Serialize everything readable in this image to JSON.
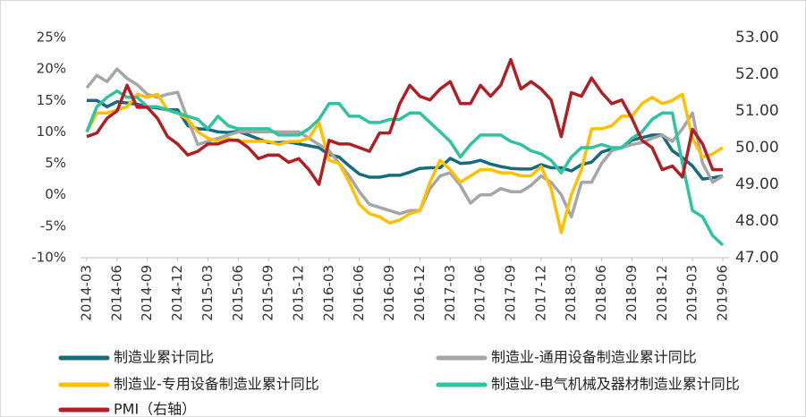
{
  "chart_data": {
    "type": "line",
    "categories": [
      "2014-03",
      null,
      null,
      "2014-06",
      null,
      null,
      "2014-09",
      null,
      null,
      "2014-12",
      null,
      null,
      "2015-03",
      null,
      null,
      "2015-06",
      null,
      null,
      "2015-09",
      null,
      null,
      "2015-12",
      null,
      null,
      "2016-03",
      null,
      null,
      "2016-06",
      null,
      null,
      "2016-09",
      null,
      null,
      "2016-12",
      null,
      null,
      "2017-03",
      null,
      null,
      "2017-06",
      null,
      null,
      "2017-09",
      null,
      null,
      "2017-12",
      null,
      null,
      "2018-03",
      null,
      null,
      "2018-06",
      null,
      null,
      "2018-09",
      null,
      null,
      "2018-12",
      null,
      null,
      "2019-03",
      null,
      null,
      "2019-06"
    ],
    "series": [
      {
        "name": "制造业累计同比",
        "color": "#186b7c",
        "values": [
          15,
          15,
          14,
          14.8,
          14.6,
          14.4,
          14,
          13.8,
          13.5,
          13.5,
          11,
          10.5,
          10.4,
          10,
          9.9,
          10.1,
          9.5,
          8.9,
          8.3,
          8.3,
          8.4,
          8.1,
          7.8,
          7.5,
          6.4,
          6,
          4.6,
          3.3,
          2.8,
          2.8,
          3.1,
          3.1,
          3.6,
          4.2,
          4.3,
          4.3,
          5.8,
          5,
          5.1,
          5.5,
          4.9,
          4.5,
          4.2,
          4.1,
          4.1,
          4.8,
          4.3,
          4.3,
          3.8,
          4.8,
          5.2,
          6.8,
          7.3,
          7.5,
          8.7,
          9.1,
          9.5,
          9.5,
          7,
          5.9,
          4.6,
          2.5,
          2.7,
          3
        ]
      },
      {
        "name": "制造业-通用设备制造业累计同比",
        "color": "#a6a6a6",
        "values": [
          17,
          19,
          18,
          20,
          18.5,
          17.5,
          16,
          15.5,
          16,
          16.3,
          12,
          8,
          8.5,
          9,
          9.5,
          10,
          10,
          10,
          10,
          10,
          10,
          10,
          9,
          8,
          7,
          5,
          3,
          0.5,
          -1.5,
          -2,
          -2.5,
          -3,
          -2.5,
          -2.5,
          1,
          3,
          3.5,
          1.5,
          -1.3,
          0,
          0,
          1,
          0.5,
          0.5,
          1.5,
          3,
          2,
          0,
          -3.5,
          2,
          2,
          5,
          7,
          7.5,
          8,
          8.3,
          9,
          9.5,
          8.5,
          10.5,
          13,
          5,
          2,
          3
        ]
      },
      {
        "name": "制造业-专用设备制造业累计同比",
        "color": "#ffc000",
        "values": [
          10,
          13,
          13,
          13.5,
          14,
          16,
          15.5,
          16,
          13.5,
          13,
          12,
          10,
          9,
          8.5,
          9,
          8.5,
          8.5,
          8.5,
          8.5,
          8,
          8.5,
          8.5,
          9,
          11.5,
          5.5,
          5,
          2,
          -1.5,
          -3,
          -3.5,
          -4.5,
          -4,
          -3,
          -2.5,
          2,
          5.5,
          4,
          2,
          3,
          4,
          4,
          3.5,
          3.5,
          3,
          3,
          4.5,
          1,
          -6,
          0,
          4,
          10.5,
          10.5,
          11,
          12.5,
          12.5,
          14.5,
          15.5,
          14.5,
          15,
          16,
          9,
          6,
          6.5,
          7.5
        ]
      },
      {
        "name": "制造业-电气机械及器材制造业累计同比",
        "color": "#2ec4a0",
        "values": [
          10,
          14,
          15.5,
          16.5,
          15.5,
          15.5,
          14,
          14,
          13.5,
          13,
          12.5,
          12,
          10.5,
          12.5,
          11,
          10.5,
          10.5,
          10.5,
          10.5,
          9.5,
          9.5,
          9.5,
          10.5,
          12,
          14.5,
          14.5,
          12.5,
          12.5,
          11.5,
          11.5,
          12,
          12,
          13,
          13,
          11.5,
          10,
          8.5,
          6,
          8,
          9.5,
          9.5,
          9.5,
          8.5,
          8,
          7,
          6.5,
          5.5,
          3.5,
          6,
          7.5,
          7.5,
          8,
          7.5,
          7.5,
          9,
          10,
          12,
          13,
          13,
          5,
          -2.5,
          -3.5,
          -6.5,
          -8
        ]
      },
      {
        "name": "PMI（右轴）",
        "color": "#b01f24",
        "axis": "y2",
        "values": [
          50.3,
          50.4,
          50.8,
          51,
          51.7,
          51.1,
          51.1,
          50.8,
          50.3,
          50.1,
          49.8,
          49.9,
          50.1,
          50.1,
          50.2,
          50.2,
          50,
          49.7,
          49.8,
          49.8,
          49.6,
          49.7,
          49.4,
          49,
          50.2,
          50.1,
          50.1,
          50,
          49.9,
          50.4,
          50.4,
          51.2,
          51.7,
          51.4,
          51.3,
          51.6,
          51.8,
          51.2,
          51.2,
          51.7,
          51.4,
          51.7,
          52.4,
          51.6,
          51.8,
          51.6,
          51.3,
          50.3,
          51.5,
          51.4,
          51.9,
          51.5,
          51.2,
          51.3,
          50.8,
          50.2,
          50,
          49.4,
          49.5,
          49.2,
          50.5,
          50.1,
          49.4,
          49.4
        ]
      }
    ],
    "ylim": [
      -10,
      25
    ],
    "yticks": [
      {
        "value": -10,
        "label": "-10%"
      },
      {
        "value": -5,
        "label": "-5%"
      },
      {
        "value": 0,
        "label": "0%"
      },
      {
        "value": 5,
        "label": "5%"
      },
      {
        "value": 10,
        "label": "10%"
      },
      {
        "value": 15,
        "label": "15%"
      },
      {
        "value": 20,
        "label": "20%"
      },
      {
        "value": 25,
        "label": "25%"
      }
    ],
    "y2lim": [
      47,
      53
    ],
    "y2ticks": [
      {
        "value": 47,
        "label": "47.00"
      },
      {
        "value": 48,
        "label": "48.00"
      },
      {
        "value": 49,
        "label": "49.00"
      },
      {
        "value": 50,
        "label": "50.00"
      },
      {
        "value": 51,
        "label": "51.00"
      },
      {
        "value": 52,
        "label": "52.00"
      },
      {
        "value": 53,
        "label": "53.00"
      }
    ],
    "grid": false
  }
}
